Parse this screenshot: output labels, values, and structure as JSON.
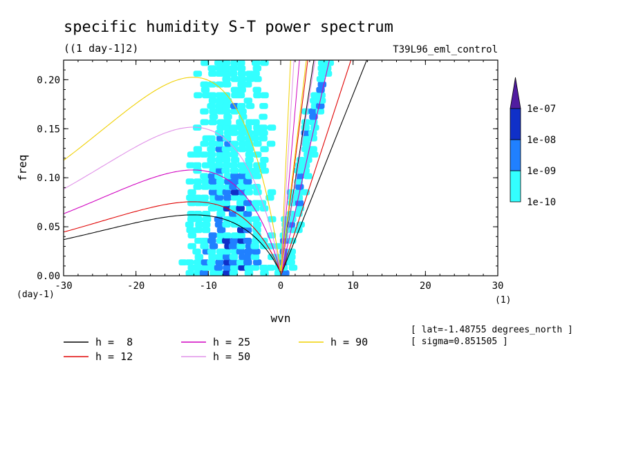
{
  "chart_data": {
    "type": "heatmap",
    "title": "specific humidity S-T power spectrum",
    "units_label": "((1 day-1]2)",
    "run_label": "T39L96_eml_control",
    "xlabel": "wvn",
    "ylabel": "freq",
    "x_unit_label": "(1)",
    "y_unit_label": "(day-1)",
    "xlim": [
      -30,
      30
    ],
    "ylim": [
      0.0,
      0.22
    ],
    "x_ticks": [
      -30,
      -20,
      -10,
      0,
      10,
      20,
      30
    ],
    "x_tick_labels": [
      "-30",
      "-20",
      "-10",
      "0",
      "10",
      "20",
      "30"
    ],
    "y_ticks": [
      0.0,
      0.05,
      0.1,
      0.15,
      0.2
    ],
    "y_tick_labels": [
      "0.00",
      "0.05",
      "0.10",
      "0.15",
      "0.20"
    ],
    "colorbar": {
      "levels": [
        "1e-10",
        "1e-09",
        "1e-08",
        "1e-07"
      ],
      "colors": [
        "#33ffff",
        "#2080ff",
        "#1030c8",
        "#501ca0"
      ]
    },
    "dispersion_curves": [
      {
        "h": 8,
        "label": "h =  8",
        "color": "#000000"
      },
      {
        "h": 12,
        "label": "h = 12",
        "color": "#e00000"
      },
      {
        "h": 25,
        "label": "h = 25",
        "color": "#d000c0"
      },
      {
        "h": 50,
        "label": "h = 50",
        "color": "#e090e8"
      },
      {
        "h": 90,
        "label": "h = 90",
        "color": "#f0d000"
      }
    ],
    "annotations": [
      "[ lat=-1.48755 degrees_north ]",
      "[ sigma=0.851505 ]"
    ]
  }
}
